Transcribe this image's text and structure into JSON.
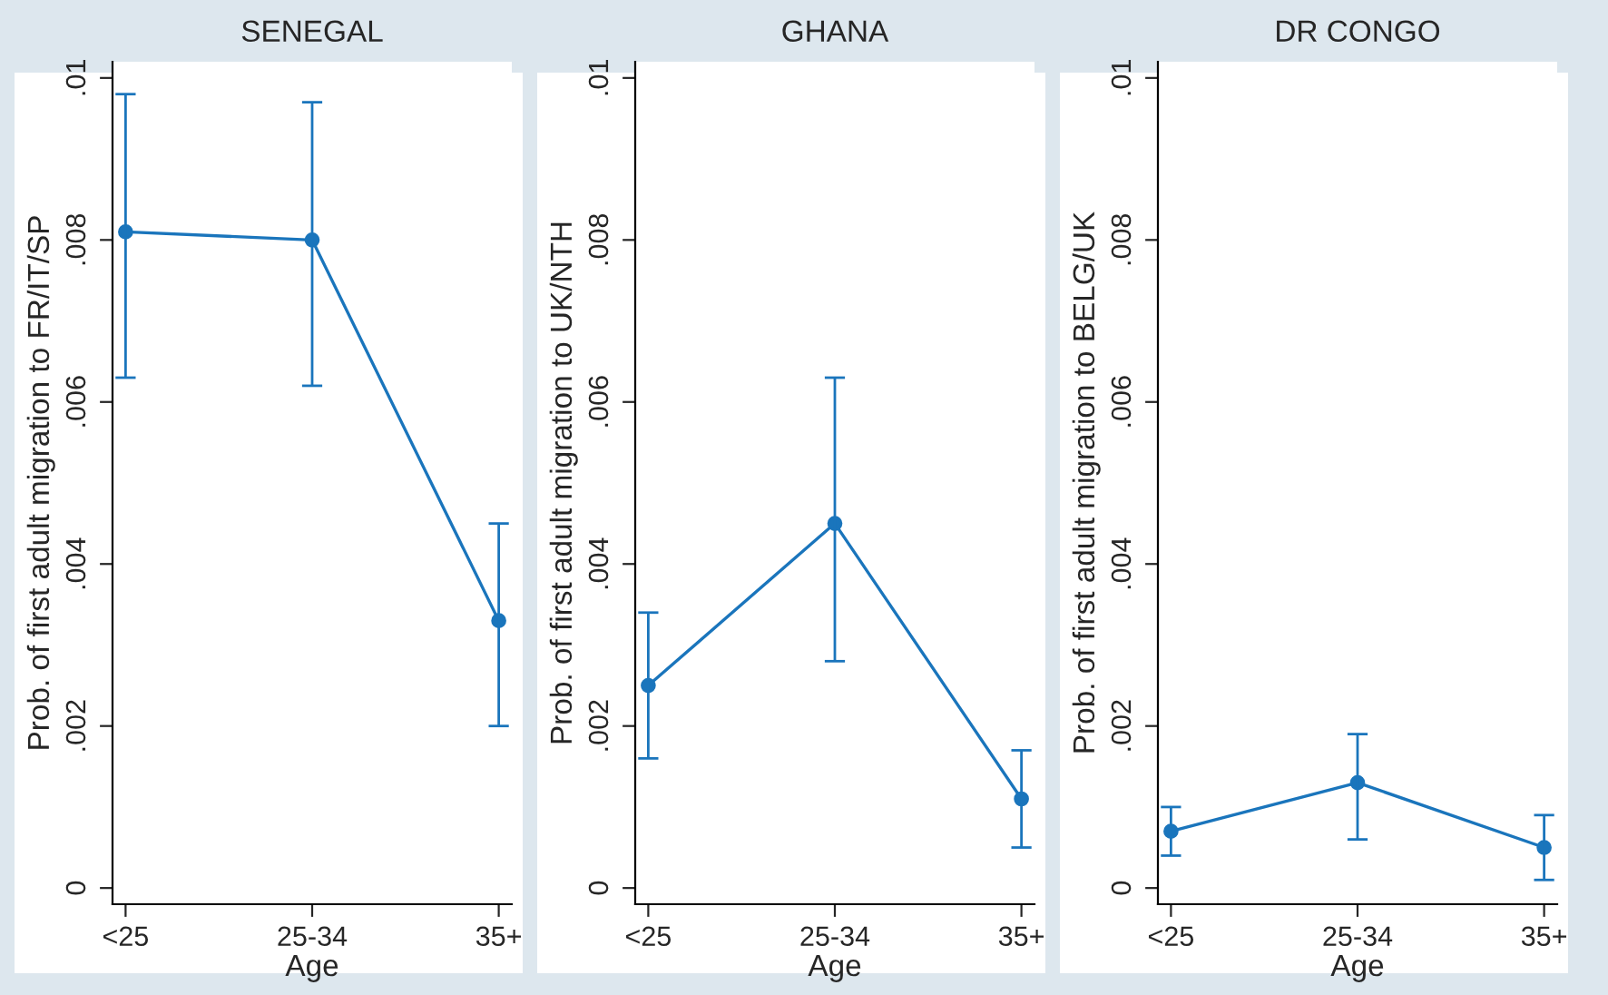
{
  "chart_data": [
    {
      "type": "line",
      "title": "SENEGAL",
      "xlabel": "Age",
      "ylabel": "Prob. of first adult migration to FR/IT/SP",
      "categories": [
        "<25",
        "25-34",
        "35+"
      ],
      "ylim": [
        -0.0002,
        0.0102
      ],
      "yticks": [
        {
          "value": 0,
          "label": "0"
        },
        {
          "value": 0.002,
          "label": ".002"
        },
        {
          "value": 0.004,
          "label": ".004"
        },
        {
          "value": 0.006,
          "label": ".006"
        },
        {
          "value": 0.008,
          "label": ".008"
        },
        {
          "value": 0.01,
          "label": ".01"
        }
      ],
      "marker": "circle",
      "line_style": "solid",
      "grid": false,
      "series": [
        {
          "color": "#1a75bc",
          "values": [
            0.0081,
            0.008,
            0.0033
          ],
          "errors": [
            [
              0.0063,
              0.0098
            ],
            [
              0.0062,
              0.0097
            ],
            [
              0.002,
              0.0045
            ]
          ]
        }
      ]
    },
    {
      "type": "line",
      "title": "GHANA",
      "xlabel": "Age",
      "ylabel": "Prob. of first adult migration to UK/NTH",
      "categories": [
        "<25",
        "25-34",
        "35+"
      ],
      "ylim": [
        -0.0002,
        0.0102
      ],
      "yticks": [
        {
          "value": 0,
          "label": "0"
        },
        {
          "value": 0.002,
          "label": ".002"
        },
        {
          "value": 0.004,
          "label": ".004"
        },
        {
          "value": 0.006,
          "label": ".006"
        },
        {
          "value": 0.008,
          "label": ".008"
        },
        {
          "value": 0.01,
          "label": ".01"
        }
      ],
      "marker": "circle",
      "line_style": "solid",
      "grid": false,
      "series": [
        {
          "color": "#1a75bc",
          "values": [
            0.0025,
            0.0045,
            0.0011
          ],
          "errors": [
            [
              0.0016,
              0.0034
            ],
            [
              0.0028,
              0.0063
            ],
            [
              0.0005,
              0.0017
            ]
          ]
        }
      ]
    },
    {
      "type": "line",
      "title": "DR CONGO",
      "xlabel": "Age",
      "ylabel": "Prob. of first adult migration to BELG/UK",
      "categories": [
        "<25",
        "25-34",
        "35+"
      ],
      "ylim": [
        -0.0002,
        0.0102
      ],
      "yticks": [
        {
          "value": 0,
          "label": "0"
        },
        {
          "value": 0.002,
          "label": ".002"
        },
        {
          "value": 0.004,
          "label": ".004"
        },
        {
          "value": 0.006,
          "label": ".006"
        },
        {
          "value": 0.008,
          "label": ".008"
        },
        {
          "value": 0.01,
          "label": ".01"
        }
      ],
      "marker": "circle",
      "line_style": "solid",
      "grid": false,
      "series": [
        {
          "color": "#1a75bc",
          "values": [
            0.0007,
            0.0013,
            0.0005
          ],
          "errors": [
            [
              0.0004,
              0.001
            ],
            [
              0.0006,
              0.0019
            ],
            [
              0.0001,
              0.0009
            ]
          ]
        }
      ]
    }
  ]
}
